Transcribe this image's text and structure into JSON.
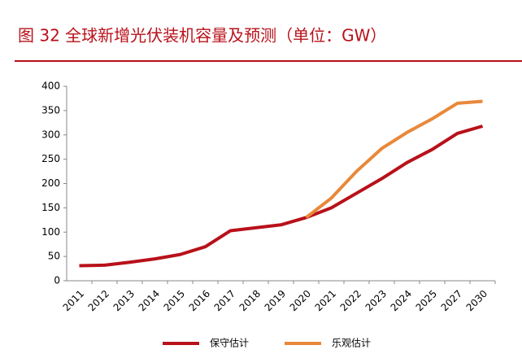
{
  "chart_data": {
    "type": "line",
    "title": "图 32 全球新增光伏装机容量及预测（单位：GW）",
    "categories": [
      "2011",
      "2012",
      "2013",
      "2014",
      "2015",
      "2016",
      "2017",
      "2018",
      "2019",
      "2020",
      "2021",
      "2022",
      "2023",
      "2024",
      "2025",
      "2027",
      "2030"
    ],
    "series": [
      {
        "name": "保守估计",
        "color": "#b8111a",
        "values": [
          31,
          32,
          38,
          45,
          54,
          70,
          103,
          109,
          115,
          130,
          150,
          180,
          210,
          243,
          270,
          303,
          318
        ]
      },
      {
        "name": "乐观估计",
        "color": "#e8883a",
        "values": [
          null,
          null,
          null,
          null,
          null,
          null,
          null,
          null,
          null,
          130,
          170,
          225,
          272,
          305,
          333,
          365,
          369
        ]
      }
    ],
    "ylim": [
      0,
      400
    ],
    "yticks": [
      0,
      50,
      100,
      150,
      200,
      250,
      300,
      350,
      400
    ],
    "grid": false,
    "legend": "bottom"
  }
}
